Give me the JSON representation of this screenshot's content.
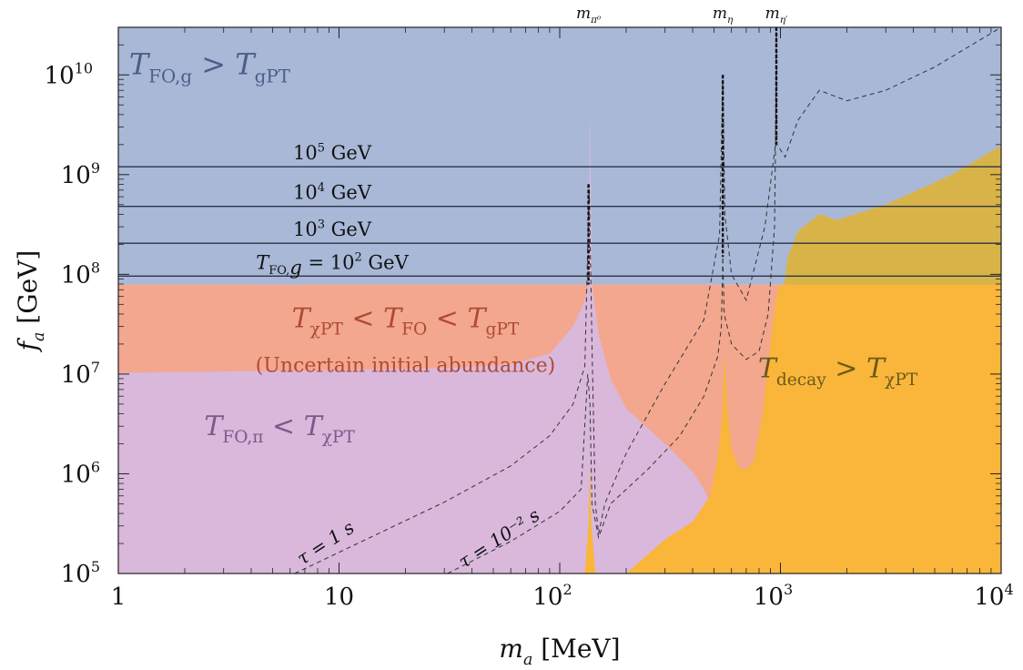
{
  "chart_data": {
    "type": "area",
    "xlabel": "m_a [MeV]",
    "ylabel": "f_a [GeV]",
    "xscale": "log",
    "yscale": "log",
    "xlim": [
      1,
      10000
    ],
    "ylim": [
      100000,
      30000000000
    ],
    "x_ticks": [
      {
        "value": 1,
        "label": "1",
        "exp": ""
      },
      {
        "value": 10,
        "label": "10",
        "exp": ""
      },
      {
        "value": 100,
        "label": "10",
        "exp": "2"
      },
      {
        "value": 1000,
        "label": "10",
        "exp": "3"
      },
      {
        "value": 10000,
        "label": "10",
        "exp": "4"
      }
    ],
    "y_ticks": [
      {
        "value": 100000,
        "label": "10",
        "exp": "5"
      },
      {
        "value": 1000000,
        "label": "10",
        "exp": "6"
      },
      {
        "value": 10000000,
        "label": "10",
        "exp": "7"
      },
      {
        "value": 100000000,
        "label": "10",
        "exp": "8"
      },
      {
        "value": 1000000000,
        "label": "10",
        "exp": "9"
      },
      {
        "value": 10000000000,
        "label": "10",
        "exp": "10"
      }
    ],
    "colors": {
      "blue": "#a8b8d6",
      "salmon": "#f3a78f",
      "pink": "#d9b8dc",
      "orange": "#f9b63a",
      "olive": "#d8b448",
      "line": "#2a3448",
      "dash": "#333333"
    },
    "regions": [
      {
        "name": "T_FO,g > T_gPT",
        "color": "#a8b8d6",
        "f_a_min": 79000000,
        "f_a_max": 30000000000
      },
      {
        "name": "T_χPT < T_FO < T_gPT",
        "color": "#f3a78f"
      },
      {
        "name": "T_FO,π < T_χPT",
        "color": "#d9b8dc"
      },
      {
        "name": "T_decay > T_χPT",
        "color": "#f9b63a"
      }
    ],
    "pink_boundary": [
      [
        1,
        10300000
      ],
      [
        3,
        10600000
      ],
      [
        10,
        11000000
      ],
      [
        30,
        11500000
      ],
      [
        60,
        12500000
      ],
      [
        90,
        16000000
      ],
      [
        115,
        30000000
      ],
      [
        128,
        50000000
      ],
      [
        135,
        79000000
      ],
      [
        137,
        5000000000
      ],
      [
        140,
        79000000
      ],
      [
        150,
        25000000
      ],
      [
        170,
        9000000
      ],
      [
        200,
        4500000
      ],
      [
        300,
        2000000
      ],
      [
        400,
        1050000
      ],
      [
        450,
        700000
      ],
      [
        500,
        430000
      ],
      [
        600,
        300000
      ],
      [
        1000,
        240000
      ],
      [
        3000,
        200000
      ],
      [
        10000,
        170000
      ]
    ],
    "orange_boundary": [
      [
        200,
        100000
      ],
      [
        300,
        220000
      ],
      [
        400,
        330000
      ],
      [
        480,
        600000
      ],
      [
        520,
        1400000
      ],
      [
        545,
        4000000
      ],
      [
        555,
        12000000
      ],
      [
        560,
        16000000
      ],
      [
        572,
        5000000
      ],
      [
        600,
        1800000
      ],
      [
        650,
        1150000
      ],
      [
        700,
        1100000
      ],
      [
        760,
        1350000
      ],
      [
        830,
        4000000
      ],
      [
        870,
        10000000
      ],
      [
        920,
        30000000
      ],
      [
        960,
        60000000
      ],
      [
        985,
        79000000
      ],
      [
        1040,
        79000000
      ],
      [
        1080,
        150000000
      ],
      [
        1200,
        270000000
      ],
      [
        1500,
        400000000
      ],
      [
        1800,
        350000000
      ],
      [
        3000,
        500000000
      ],
      [
        6000,
        1000000000
      ],
      [
        10000,
        1950000000
      ]
    ],
    "orange_thin_peak": [
      [
        130,
        100000
      ],
      [
        135,
        320000
      ],
      [
        137,
        1200000
      ],
      [
        139,
        320000
      ],
      [
        145,
        100000
      ]
    ],
    "T_FO_lines": [
      {
        "label_pre": "10",
        "label_exp": "5",
        "label_unit": " GeV",
        "f_a": 1200000000
      },
      {
        "label_pre": "10",
        "label_exp": "4",
        "label_unit": " GeV",
        "f_a": 480000000
      },
      {
        "label_pre": "10",
        "label_exp": "3",
        "label_unit": " GeV",
        "f_a": 205000000
      },
      {
        "label_pre": "T_FO,g = 10",
        "label_exp": "2",
        "label_unit": " GeV",
        "f_a": 96000000
      }
    ],
    "resonances": [
      {
        "label": "m_π⁰",
        "m_a": 135
      },
      {
        "label": "m_η",
        "m_a": 548
      },
      {
        "label": "m_η′",
        "m_a": 958
      }
    ],
    "tau_curves": [
      {
        "label": "τ = 1 s",
        "points": [
          [
            6.3,
            100000
          ],
          [
            15,
            250000
          ],
          [
            30,
            520000
          ],
          [
            60,
            1200000
          ],
          [
            90,
            2400000
          ],
          [
            115,
            5000000
          ],
          [
            130,
            12000000
          ],
          [
            136,
            800000000
          ],
          [
            140,
            20000000
          ],
          [
            145,
            500000
          ],
          [
            150,
            250000
          ],
          [
            160,
            500000
          ],
          [
            200,
            1600000
          ],
          [
            300,
            8000000
          ],
          [
            450,
            35000000
          ],
          [
            530,
            250000000
          ],
          [
            548,
            10000000000
          ],
          [
            560,
            400000000
          ],
          [
            600,
            100000000
          ],
          [
            700,
            55000000
          ],
          [
            850,
            300000000
          ],
          [
            950,
            2000000000
          ],
          [
            958,
            30000000000
          ],
          [
            965,
            2000000000
          ],
          [
            1050,
            1500000000
          ],
          [
            1200,
            3500000000
          ],
          [
            1500,
            7000000000
          ],
          [
            2000,
            5500000000
          ],
          [
            3000,
            7000000000
          ],
          [
            5000,
            12000000000
          ],
          [
            10000,
            30000000000
          ]
        ]
      },
      {
        "label": "τ = 10^-2 s",
        "points": [
          [
            31,
            100000
          ],
          [
            60,
            210000
          ],
          [
            100,
            420000
          ],
          [
            125,
            700000
          ],
          [
            134,
            10000000
          ],
          [
            137,
            5000000
          ],
          [
            140,
            500000
          ],
          [
            150,
            230000
          ],
          [
            170,
            500000
          ],
          [
            250,
            1100000
          ],
          [
            350,
            2400000
          ],
          [
            450,
            6000000
          ],
          [
            520,
            15000000
          ],
          [
            540,
            30000000
          ],
          [
            548,
            150000000
          ],
          [
            556,
            40000000
          ],
          [
            600,
            20000000
          ],
          [
            700,
            14000000
          ],
          [
            800,
            17000000
          ],
          [
            880,
            40000000
          ],
          [
            940,
            300000000
          ],
          [
            958,
            10000000000
          ]
        ]
      }
    ],
    "annotations": [
      {
        "pre": "T",
        "sub": "FO,g",
        "mid": " > T",
        "sub2": "gPT",
        "m_a": 3.5,
        "f_a": 12000000000
      },
      {
        "pre": "T",
        "sub": "χPT",
        "mid": " < T",
        "sub2": "FO",
        "post": " < T",
        "sub3": "gPT",
        "m_a": 20,
        "f_a": 35000000
      },
      {
        "text": "(Uncertain initial abundance)",
        "m_a": 20,
        "f_a": 12500000
      },
      {
        "pre": "T",
        "sub": "FO,π",
        "mid": " < T",
        "sub2": "χPT",
        "m_a": 6.5,
        "f_a": 2900000
      },
      {
        "pre": "T",
        "sub": "decay",
        "mid": " > T",
        "sub2": "χPT",
        "m_a": 2000,
        "f_a": 11000000
      }
    ],
    "tau_labels": [
      {
        "text": "τ = 1 s",
        "m_a": 9,
        "f_a": 180000
      },
      {
        "text": "τ = 10⁻² s",
        "m_a": 55,
        "f_a": 200000
      }
    ]
  }
}
